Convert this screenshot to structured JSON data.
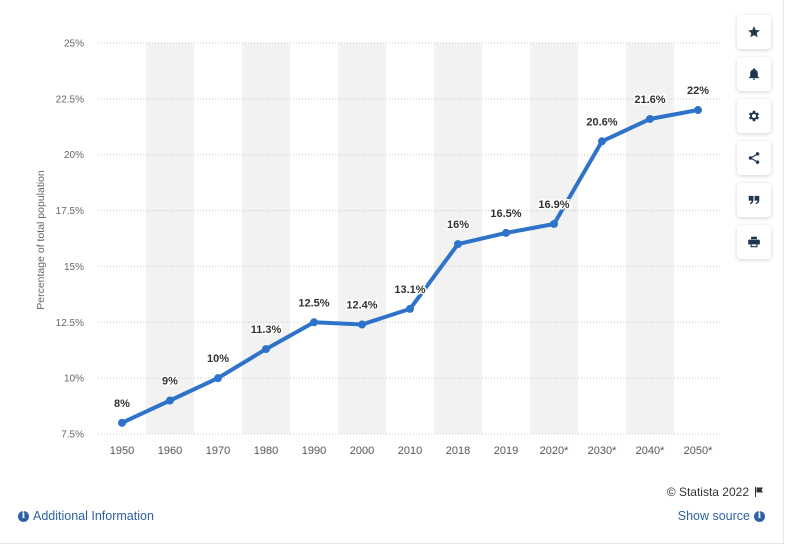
{
  "chart_data": {
    "type": "line",
    "ylabel": "Percentage of total population",
    "xlabel": "",
    "categories": [
      "1950",
      "1960",
      "1970",
      "1980",
      "1990",
      "2000",
      "2010",
      "2018",
      "2019",
      "2020*",
      "2030*",
      "2040*",
      "2050*"
    ],
    "values": [
      8,
      9,
      10,
      11.3,
      12.5,
      12.4,
      13.1,
      16,
      16.5,
      16.9,
      20.6,
      21.6,
      22
    ],
    "data_labels": [
      "8%",
      "9%",
      "10%",
      "11.3%",
      "12.5%",
      "12.4%",
      "13.1%",
      "16%",
      "16.5%",
      "16.9%",
      "20.6%",
      "21.6%",
      "22%"
    ],
    "ylim": [
      7.5,
      25
    ],
    "yticks": [
      7.5,
      10,
      12.5,
      15,
      17.5,
      20,
      22.5,
      25
    ],
    "ytick_labels": [
      "7.5%",
      "10%",
      "12.5%",
      "15%",
      "17.5%",
      "20%",
      "22.5%",
      "25%"
    ],
    "grid": true,
    "line_color": "#2e73c9",
    "band_color": "#f2f2f2"
  },
  "toolbar": {
    "items": [
      {
        "icon": "star-icon"
      },
      {
        "icon": "bell-icon"
      },
      {
        "icon": "gear-icon"
      },
      {
        "icon": "share-icon"
      },
      {
        "icon": "quote-icon"
      },
      {
        "icon": "print-icon"
      }
    ]
  },
  "footer": {
    "copyright": "© Statista 2022",
    "additional_info": "Additional Information",
    "show_source": "Show source"
  },
  "colors": {
    "link": "#2f62a4",
    "icon": "#1f3550"
  }
}
